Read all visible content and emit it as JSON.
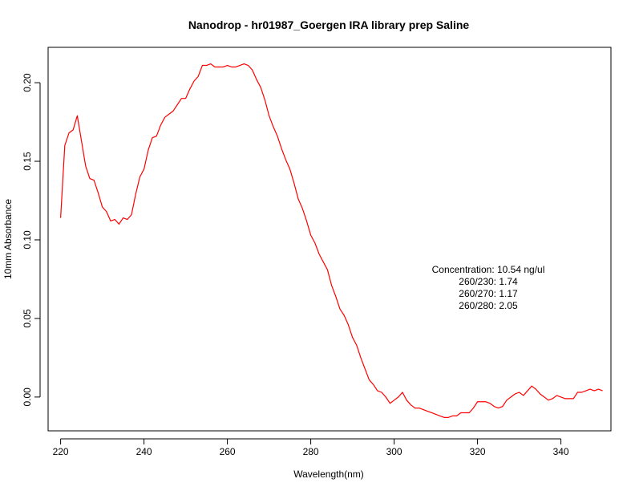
{
  "chart_data": {
    "type": "line",
    "title": "Nanodrop - hr01987_Goergen IRA library prep Saline",
    "xlabel": "Wavelength(nm)",
    "ylabel": "10mm Absorbance",
    "xlim": [
      217,
      352
    ],
    "ylim": [
      -0.0215,
      0.2225
    ],
    "xticks": [
      220,
      240,
      260,
      280,
      300,
      320,
      340
    ],
    "xtick_labels": [
      "220",
      "240",
      "260",
      "280",
      "300",
      "320",
      "340"
    ],
    "yticks": [
      0.0,
      0.05,
      0.1,
      0.15,
      0.2
    ],
    "ytick_labels": [
      "0.00",
      "0.05",
      "0.10",
      "0.15",
      "0.20"
    ],
    "grid": false,
    "legend": "none",
    "series": [
      {
        "color": "#ff0000",
        "x": [
          220,
          221,
          222,
          223,
          224,
          225,
          226,
          227,
          228,
          229,
          230,
          231,
          232,
          233,
          234,
          235,
          236,
          237,
          238,
          239,
          240,
          241,
          242,
          243,
          244,
          245,
          246,
          247,
          248,
          249,
          250,
          251,
          252,
          253,
          254,
          255,
          256,
          257,
          258,
          259,
          260,
          261,
          262,
          263,
          264,
          265,
          266,
          267,
          268,
          269,
          270,
          271,
          272,
          273,
          274,
          275,
          276,
          277,
          278,
          279,
          280,
          281,
          282,
          283,
          284,
          285,
          286,
          287,
          288,
          289,
          290,
          291,
          292,
          293,
          294,
          295,
          296,
          297,
          298,
          299,
          300,
          301,
          302,
          303,
          304,
          305,
          306,
          307,
          308,
          309,
          310,
          311,
          312,
          313,
          314,
          315,
          316,
          317,
          318,
          319,
          320,
          321,
          322,
          323,
          324,
          325,
          326,
          327,
          328,
          329,
          330,
          331,
          332,
          333,
          334,
          335,
          336,
          337,
          338,
          339,
          340,
          341,
          342,
          343,
          344,
          345,
          346,
          347,
          348,
          349,
          350
        ],
        "values": [
          0.114,
          0.16,
          0.168,
          0.17,
          0.179,
          0.163,
          0.147,
          0.139,
          0.138,
          0.13,
          0.121,
          0.118,
          0.112,
          0.113,
          0.11,
          0.114,
          0.113,
          0.116,
          0.129,
          0.14,
          0.145,
          0.157,
          0.165,
          0.166,
          0.173,
          0.178,
          0.18,
          0.182,
          0.186,
          0.19,
          0.19,
          0.196,
          0.201,
          0.204,
          0.211,
          0.211,
          0.212,
          0.21,
          0.21,
          0.21,
          0.211,
          0.21,
          0.21,
          0.211,
          0.212,
          0.211,
          0.208,
          0.202,
          0.197,
          0.189,
          0.179,
          0.172,
          0.166,
          0.158,
          0.151,
          0.145,
          0.136,
          0.126,
          0.12,
          0.112,
          0.103,
          0.098,
          0.091,
          0.086,
          0.081,
          0.071,
          0.064,
          0.056,
          0.052,
          0.046,
          0.038,
          0.033,
          0.025,
          0.018,
          0.011,
          0.008,
          0.004,
          0.003,
          0.0,
          -0.004,
          -0.002,
          0.0,
          0.003,
          -0.002,
          -0.005,
          -0.007,
          -0.007,
          -0.008,
          -0.009,
          -0.01,
          -0.011,
          -0.012,
          -0.013,
          -0.013,
          -0.012,
          -0.012,
          -0.01,
          -0.01,
          -0.01,
          -0.007,
          -0.003,
          -0.003,
          -0.003,
          -0.004,
          -0.006,
          -0.007,
          -0.006,
          -0.002,
          0.0,
          0.002,
          0.003,
          0.001,
          0.004,
          0.007,
          0.005,
          0.002,
          0.0,
          -0.002,
          -0.001,
          0.001,
          0.0,
          -0.001,
          -0.001,
          -0.001,
          0.003,
          0.003,
          0.004,
          0.005,
          0.004,
          0.005,
          0.004
        ]
      }
    ],
    "annotation": {
      "lines": [
        "Concentration: 10.54 ng/ul",
        "260/230: 1.74",
        "260/270: 1.17",
        "260/280: 2.05"
      ]
    }
  }
}
